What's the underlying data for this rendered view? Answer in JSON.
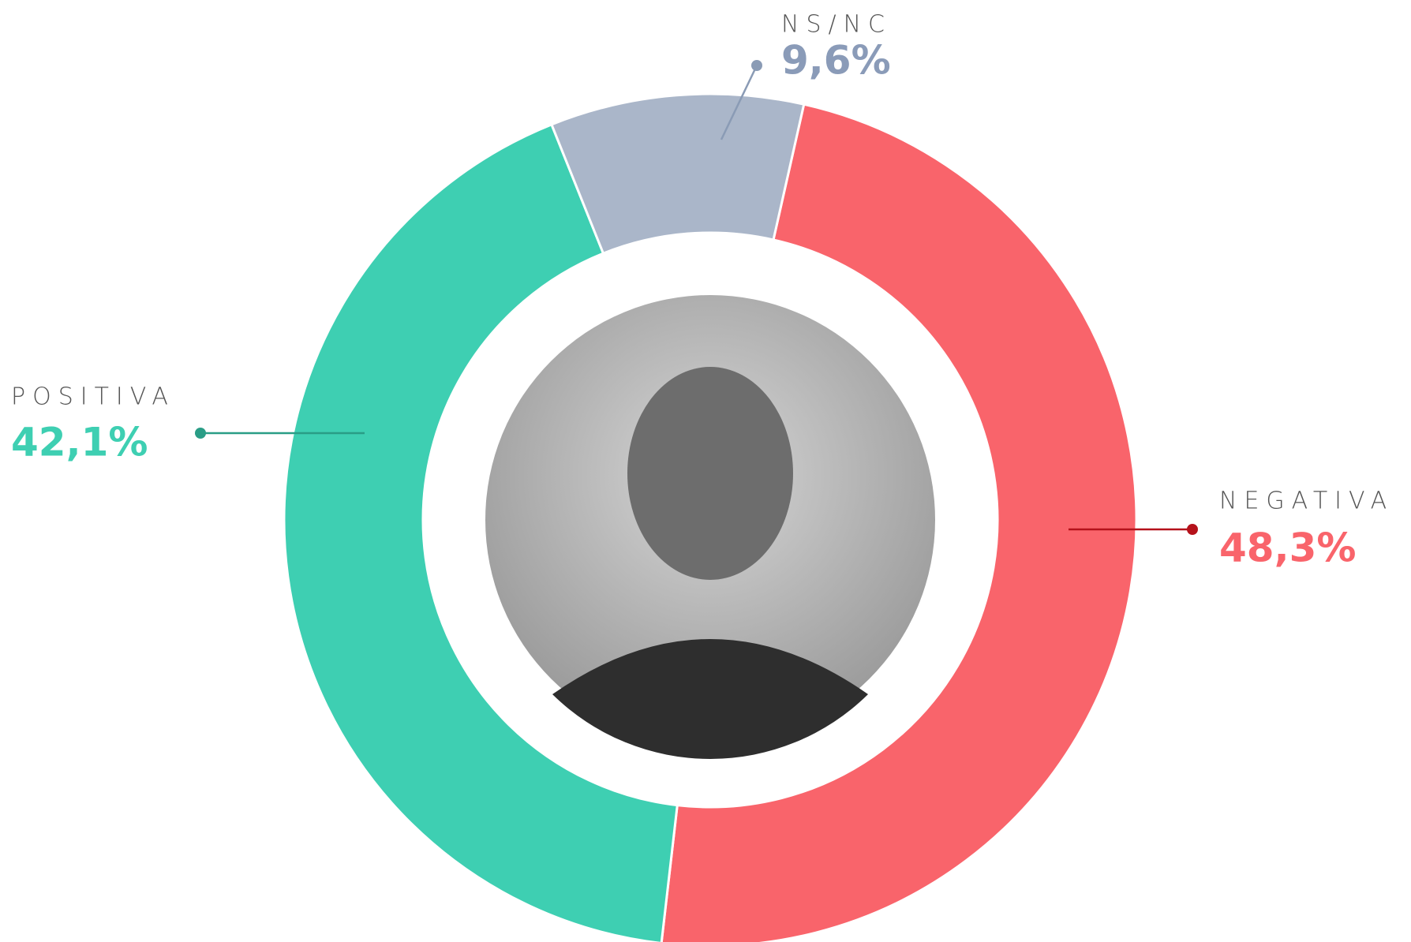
{
  "chart_data": {
    "type": "donut",
    "categories": [
      "NEGATIVA",
      "POSITIVA",
      "NS/NC"
    ],
    "values": [
      48.3,
      42.1,
      9.6
    ],
    "value_labels": [
      "48,3%",
      "42,1%",
      "9,6%"
    ],
    "colors": [
      "#f9646b",
      "#3ecfb2",
      "#aab6c9"
    ]
  }
}
